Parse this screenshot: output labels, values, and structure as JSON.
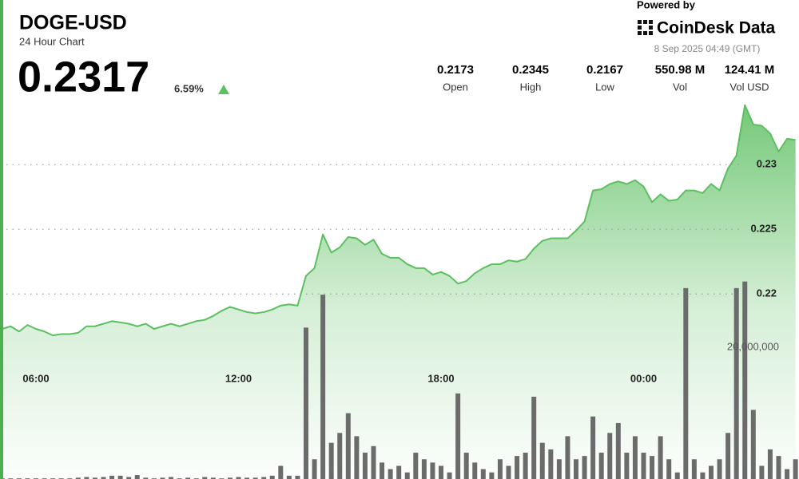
{
  "header": {
    "symbol": "DOGE-USD",
    "subtitle": "24 Hour Chart",
    "price": "0.2317",
    "change": "6.59%"
  },
  "branding": {
    "powered_by": "Powered by",
    "logo": "CoinDesk Data",
    "timestamp": "8 Sep 2025 04:49 (GMT)"
  },
  "stats": [
    {
      "value": "0.2173",
      "label": "Open"
    },
    {
      "value": "0.2345",
      "label": "High"
    },
    {
      "value": "0.2167",
      "label": "Low"
    },
    {
      "value": "550.98 M",
      "label": "Vol"
    },
    {
      "value": "124.41 M",
      "label": "Vol USD"
    }
  ],
  "chart_data": {
    "type": "area",
    "categories": [
      null,
      null,
      null,
      null,
      "06:00",
      null,
      null,
      null,
      null,
      null,
      null,
      null,
      null,
      null,
      null,
      null,
      null,
      null,
      null,
      null,
      null,
      null,
      null,
      null,
      null,
      null,
      null,
      null,
      "12:00",
      null,
      null,
      null,
      null,
      null,
      null,
      null,
      null,
      null,
      null,
      null,
      null,
      null,
      null,
      null,
      null,
      null,
      null,
      null,
      null,
      null,
      null,
      null,
      "18:00",
      null,
      null,
      null,
      null,
      null,
      null,
      null,
      null,
      null,
      null,
      null,
      null,
      null,
      null,
      null,
      null,
      null,
      null,
      null,
      null,
      null,
      null,
      null,
      "00:00",
      null,
      null,
      null,
      null,
      null,
      null,
      null,
      null,
      null,
      null,
      null,
      null,
      null,
      null,
      null,
      null,
      null,
      null
    ],
    "series": [
      {
        "color": "#5cbf60",
        "values": [
          0.2173,
          0.2175,
          0.2171,
          0.2176,
          0.2173,
          0.2171,
          0.2168,
          0.2169,
          0.2169,
          0.217,
          0.2175,
          0.2175,
          0.2177,
          0.2179,
          0.2178,
          0.2177,
          0.2175,
          0.2177,
          0.2173,
          0.2175,
          0.2177,
          0.2175,
          0.2177,
          0.2179,
          0.218,
          0.2183,
          0.2187,
          0.219,
          0.2188,
          0.2186,
          0.2185,
          0.2186,
          0.2188,
          0.2191,
          0.2192,
          0.2191,
          0.2214,
          0.222,
          0.2246,
          0.2232,
          0.2236,
          0.2244,
          0.2243,
          0.2238,
          0.2242,
          0.2231,
          0.2228,
          0.2228,
          0.2223,
          0.222,
          0.222,
          0.2215,
          0.2217,
          0.2214,
          0.2208,
          0.221,
          0.2216,
          0.222,
          0.2223,
          0.2223,
          0.2226,
          0.2225,
          0.2227,
          0.2235,
          0.2241,
          0.2243,
          0.2243,
          0.2243,
          0.2249,
          0.2256,
          0.228,
          0.2281,
          0.2285,
          0.2287,
          0.2285,
          0.2288,
          0.2283,
          0.2271,
          0.2277,
          0.2272,
          0.2273,
          0.228,
          0.228,
          0.2278,
          0.2285,
          0.228,
          0.2297,
          0.2307,
          0.2346,
          0.2331,
          0.233,
          0.2324,
          0.231,
          0.232,
          0.2319
        ]
      },
      {
        "type": "bar",
        "axis": "y2",
        "color": "#6b6b6b",
        "values": [
          100000,
          100000,
          100000,
          100000,
          100000,
          100000,
          100000,
          100000,
          100000,
          200000,
          300000,
          200000,
          300000,
          500000,
          500000,
          300000,
          600000,
          200000,
          100000,
          200000,
          300000,
          100000,
          200000,
          100000,
          300000,
          200000,
          100000,
          200000,
          300000,
          200000,
          200000,
          300000,
          500000,
          2000000,
          500000,
          500000,
          23000000,
          3000000,
          28000000,
          5500000,
          7000000,
          10000000,
          6500000,
          4000000,
          5000000,
          2500000,
          1500000,
          2000000,
          1000000,
          4000000,
          3000000,
          2500000,
          2000000,
          1000000,
          13000000,
          4000000,
          2500000,
          1500000,
          1000000,
          3000000,
          2000000,
          3500000,
          4000000,
          12500000,
          5500000,
          4500000,
          3000000,
          6500000,
          3000000,
          3500000,
          9500000,
          4000000,
          7000000,
          8500000,
          4000000,
          6500000,
          4000000,
          3500000,
          6500000,
          3000000,
          1000000,
          29000000,
          3000000,
          1000000,
          2000000,
          3000000,
          7000000,
          29000000,
          30000000,
          10500000,
          2000000,
          4500000,
          3500000,
          1500000,
          3000000
        ]
      }
    ],
    "ylim": [
      0.2057,
      0.2347
    ],
    "yticks": [
      0.22,
      0.225,
      0.23
    ],
    "y2lim": [
      0,
      57000000
    ],
    "y2ticks": [
      {
        "value": 20000000,
        "label": "20,000,000"
      }
    ],
    "grid": true
  }
}
